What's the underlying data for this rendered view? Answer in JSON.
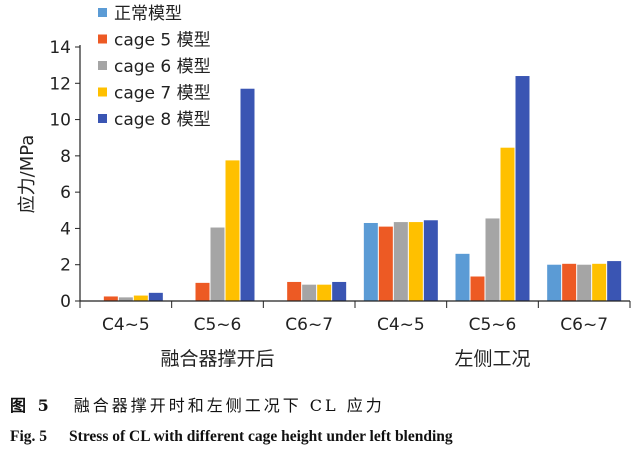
{
  "chart_data": {
    "type": "bar",
    "ylabel": "应力/MPa",
    "ylim": [
      0,
      14
    ],
    "yticks": [
      0,
      2,
      4,
      6,
      8,
      10,
      12,
      14
    ],
    "categories": [
      "C4~5",
      "C5~6",
      "C6~7",
      "C4~5",
      "C5~6",
      "C6~7"
    ],
    "groups": [
      {
        "label": "融合器撑开后",
        "categories": [
          0,
          1,
          2
        ]
      },
      {
        "label": "左侧工况",
        "categories": [
          3,
          4,
          5
        ]
      }
    ],
    "legend_position": "top-left",
    "grid": false,
    "series": [
      {
        "name": "正常模型",
        "color": "#5b9bd5",
        "values": [
          0.0,
          0.0,
          0.0,
          4.3,
          2.6,
          2.0
        ]
      },
      {
        "name": "cage 5 模型",
        "color": "#ed5a24",
        "values": [
          0.25,
          1.0,
          1.05,
          4.1,
          1.35,
          2.05
        ]
      },
      {
        "name": "cage 6 模型",
        "color": "#a5a5a5",
        "values": [
          0.2,
          4.05,
          0.9,
          4.35,
          4.55,
          2.0
        ]
      },
      {
        "name": "cage 7 模型",
        "color": "#ffc000",
        "values": [
          0.3,
          7.75,
          0.9,
          4.35,
          8.45,
          2.05
        ]
      },
      {
        "name": "cage 8 模型",
        "color": "#3a55b3",
        "values": [
          0.45,
          11.7,
          1.05,
          4.45,
          12.4,
          2.2
        ]
      }
    ]
  },
  "caption": {
    "cn_label": "图 5",
    "cn_text": "融合器撑开时和左侧工况下 CL 应力",
    "en_label": "Fig. 5",
    "en_text": "Stress of CL with different cage height under left blending"
  }
}
